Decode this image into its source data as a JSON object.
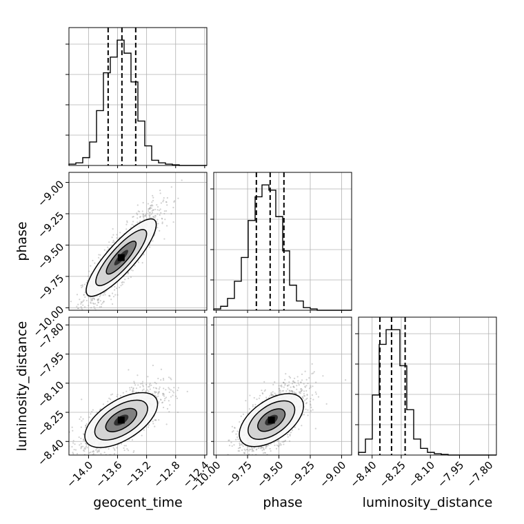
{
  "chart_data": {
    "type": "corner",
    "parameters": [
      "geocent_time",
      "phase",
      "luminosity_distance"
    ],
    "labels": {
      "geocent_time": "geocent_time",
      "phase": "phase",
      "luminosity_distance": "luminosity_distance"
    },
    "grid": true,
    "ranges": {
      "geocent_time": [
        -14.27,
        -12.37
      ],
      "phase": [
        -10.02,
        -8.92
      ],
      "luminosity_distance": [
        -8.47,
        -7.76
      ]
    },
    "ticks": {
      "geocent_time": [
        "−14.0",
        "−13.6",
        "−13.2",
        "−12.8",
        "−12.4"
      ],
      "phase": [
        "−10.00",
        "−9.75",
        "−9.50",
        "−9.25",
        "−9.00"
      ],
      "luminosity_distance": [
        "−8.40",
        "−8.25",
        "−8.10",
        "−7.95",
        "−7.80"
      ]
    },
    "tick_values": {
      "geocent_time": [
        -14.0,
        -13.6,
        -13.2,
        -12.8,
        -12.4
      ],
      "phase": [
        -10.0,
        -9.75,
        -9.5,
        -9.25,
        -9.0
      ],
      "luminosity_distance": [
        -8.4,
        -8.25,
        -8.1,
        -7.95,
        -7.8
      ]
    },
    "quantiles": {
      "geocent_time": [
        -13.73,
        -13.54,
        -13.35
      ],
      "phase": [
        -9.68,
        -9.57,
        -9.46
      ],
      "luminosity_distance": [
        -8.36,
        -8.3,
        -8.23
      ]
    },
    "histograms": {
      "geocent_time": {
        "bin_edges": [
          -14.27,
          -14.175,
          -14.08,
          -13.985,
          -13.89,
          -13.795,
          -13.7,
          -13.605,
          -13.51,
          -13.415,
          -13.32,
          -13.225,
          -13.13,
          -13.035,
          -12.94,
          -12.845,
          -12.75,
          -12.655,
          -12.56,
          -12.465,
          -12.37
        ],
        "counts": [
          1,
          2,
          6,
          18,
          42,
          71,
          83,
          96,
          86,
          64,
          34,
          15,
          4,
          2,
          1,
          0.5,
          0,
          0,
          0,
          0
        ]
      },
      "phase": {
        "bin_edges": [
          -10.02,
          -9.965,
          -9.91,
          -9.855,
          -9.8,
          -9.745,
          -9.69,
          -9.635,
          -9.58,
          -9.525,
          -9.47,
          -9.415,
          -9.36,
          -9.305,
          -9.25,
          -9.195,
          -9.14,
          -9.085,
          -9.03,
          -8.975,
          -8.92
        ],
        "counts": [
          1,
          3,
          9,
          22,
          40,
          68,
          86,
          95,
          91,
          71,
          45,
          19,
          7,
          2,
          1,
          0,
          0,
          0,
          0,
          0
        ]
      },
      "luminosity_distance": {
        "bin_edges": [
          -8.47,
          -8.4345,
          -8.399,
          -8.3635,
          -8.328,
          -8.2925,
          -8.257,
          -8.2215,
          -8.186,
          -8.1505,
          -8.115,
          -8.0795,
          -8.044,
          -8.0085,
          -7.973,
          -7.9375,
          -7.902,
          -7.8665,
          -7.831,
          -7.7955,
          -7.76
        ],
        "counts": [
          2,
          12,
          45,
          83,
          94,
          94,
          67,
          34,
          12,
          5,
          2,
          1,
          0.5,
          0,
          0,
          0,
          0,
          0,
          0,
          0
        ]
      }
    },
    "pairs": [
      {
        "x": "geocent_time",
        "y": "phase",
        "center": [
          -13.55,
          -9.6
        ],
        "sigma": [
          0.23,
          0.17
        ],
        "correlation": 0.88,
        "peak_cells": [
          [
            -13.55,
            -9.6
          ]
        ]
      },
      {
        "x": "geocent_time",
        "y": "luminosity_distance",
        "center": [
          -13.55,
          -8.29
        ],
        "sigma": [
          0.24,
          0.08
        ],
        "correlation": 0.7,
        "peak_cells": [
          [
            -13.55,
            -8.29
          ]
        ]
      },
      {
        "x": "phase",
        "y": "luminosity_distance",
        "center": [
          -9.56,
          -8.29
        ],
        "sigma": [
          0.12,
          0.08
        ],
        "correlation": 0.68,
        "peak_cells": [
          [
            -9.56,
            -8.29
          ]
        ]
      }
    ],
    "colors": {
      "lines": "#000000",
      "scatter": "#9a9a9a",
      "grid": "#b0b0b0",
      "fill_levels": [
        "#f7f7f7",
        "#d0d0d0",
        "#7a7a7a",
        "#2a2a2a",
        "#000000"
      ]
    }
  }
}
